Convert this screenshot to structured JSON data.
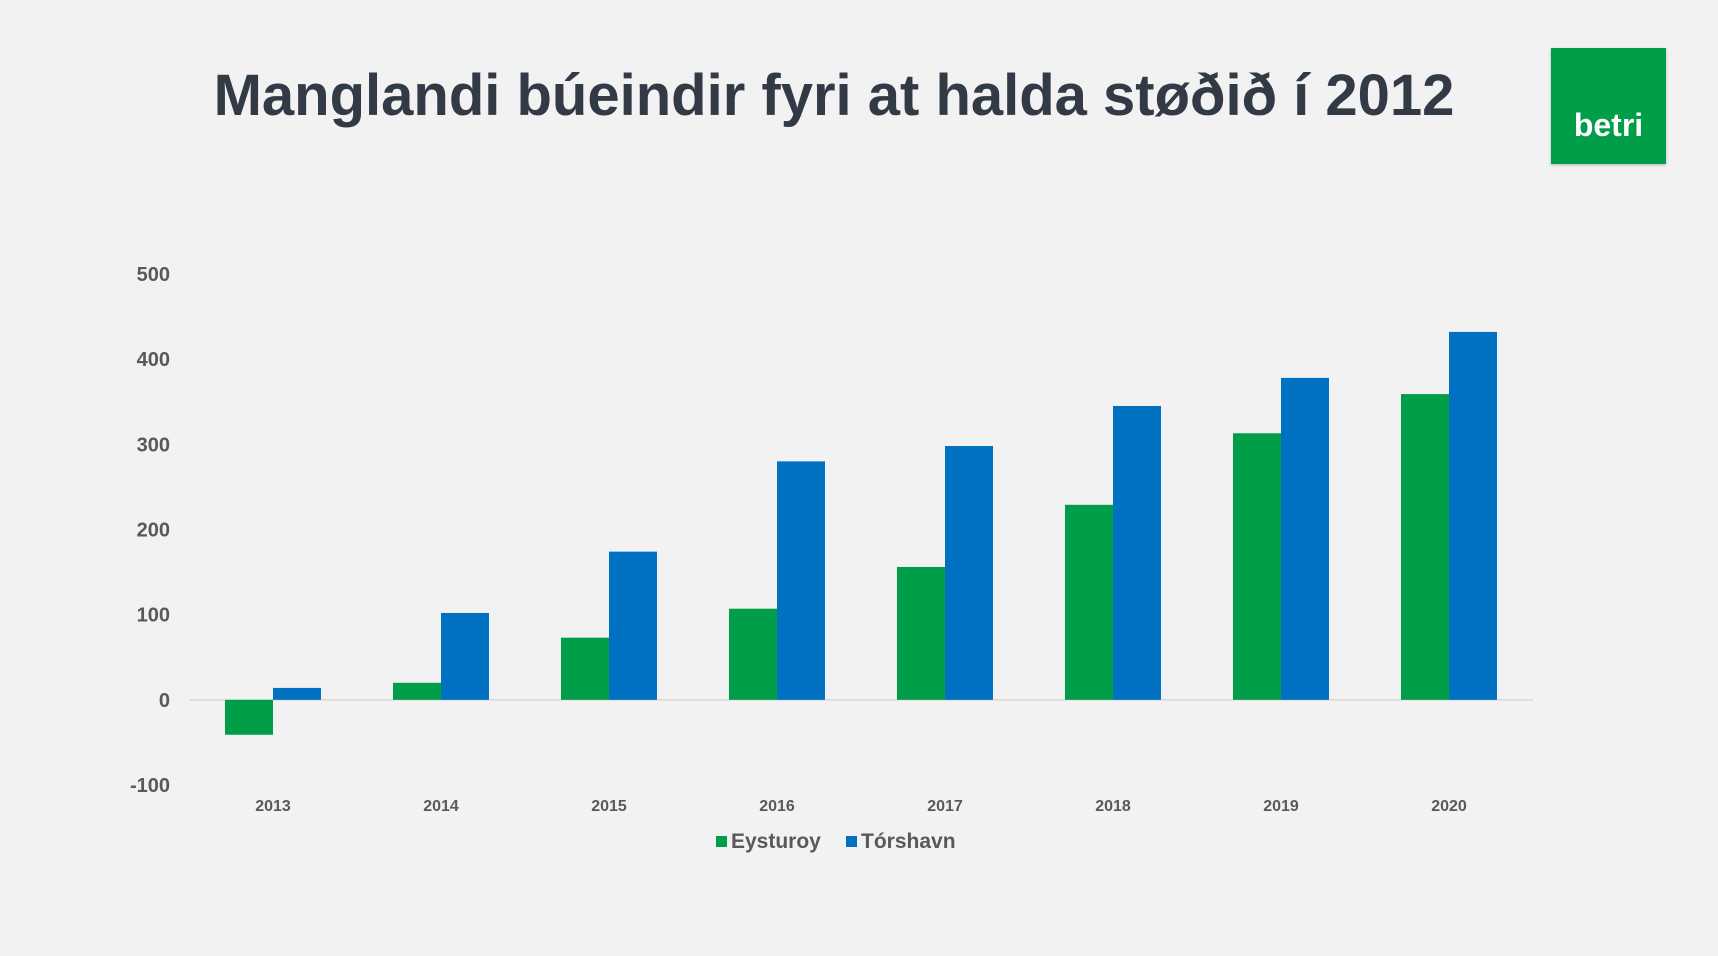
{
  "slide": {
    "title": "Manglandi búeindir fyri at halda støðið í 2012",
    "logo_text": "betri"
  },
  "colors": {
    "background": "#f2f2f2",
    "title": "#323a46",
    "logo_bg": "#009e49",
    "eysturoy": "#009e49",
    "torshavn": "#0070c0",
    "axis_text": "#595959",
    "zero_line": "#d9d9d9"
  },
  "chart_data": {
    "type": "bar",
    "title": "",
    "xlabel": "",
    "ylabel": "",
    "categories": [
      "2013",
      "2014",
      "2015",
      "2016",
      "2017",
      "2018",
      "2019",
      "2020"
    ],
    "series": [
      {
        "name": "Eysturoy",
        "color": "#009e49",
        "values": [
          -41,
          20,
          73,
          107,
          156,
          229,
          313,
          359
        ]
      },
      {
        "name": "Tórshavn",
        "color": "#0070c0",
        "values": [
          14,
          102,
          174,
          280,
          298,
          345,
          378,
          432
        ]
      }
    ],
    "ylim": [
      -100,
      500
    ],
    "yticks": [
      "-100",
      "0",
      "100",
      "200",
      "300",
      "400",
      "500"
    ],
    "grid": false,
    "legend": "bottom"
  }
}
